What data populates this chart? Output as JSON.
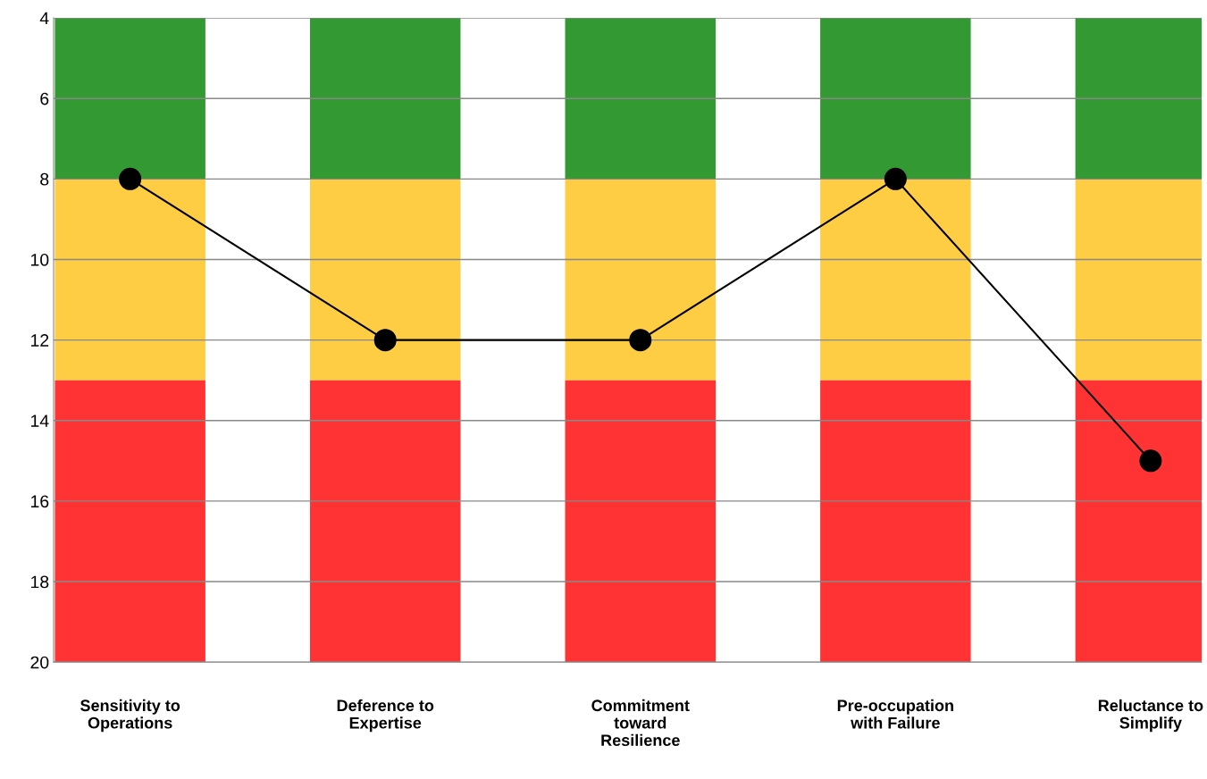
{
  "chart_data": {
    "type": "bar",
    "categories": [
      "Sensitivity to\nOperations",
      "Deference to\nExpertise",
      "Commitment\ntoward\nResilience",
      "Pre-occupation\nwith Failure",
      "Reluctance to\nSimplify"
    ],
    "series": [
      {
        "color": "#339933",
        "base": [
          4,
          4,
          4,
          4,
          4
        ],
        "values": [
          4,
          4,
          4,
          4,
          4
        ]
      },
      {
        "color": "#fecd44",
        "base": [
          8,
          8,
          8,
          8,
          8
        ],
        "values": [
          5,
          5,
          5,
          5,
          5
        ]
      },
      {
        "color": "#ff3333",
        "base": [
          13,
          13,
          13,
          13,
          13
        ],
        "values": [
          7,
          7,
          7,
          7,
          7
        ]
      },
      {
        "type": "line",
        "color": "#000000",
        "marker": "circle",
        "line_style": "solid",
        "values": [
          8,
          12,
          12,
          8,
          15
        ]
      }
    ],
    "ylim": [
      20,
      4
    ],
    "yticks": [
      4,
      6,
      8,
      10,
      12,
      14,
      16,
      18,
      20
    ],
    "grid": "y",
    "legend": false
  }
}
